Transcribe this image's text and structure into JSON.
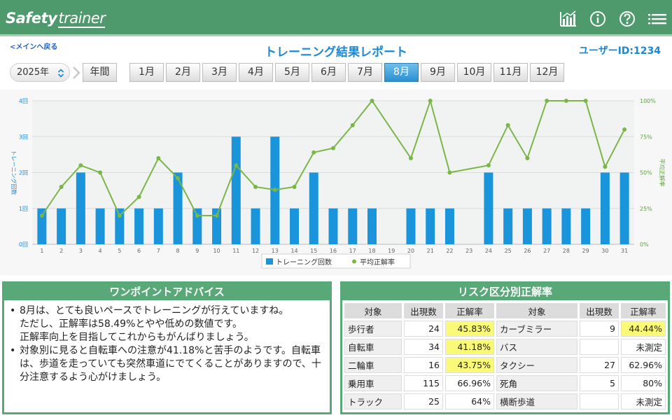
{
  "header": {
    "logo_part1": "Safety",
    "logo_part2": "trainer"
  },
  "nav": {
    "back_label": "<メインへ戻る"
  },
  "page": {
    "title": "トレーニング結果レポート",
    "user_id": "ユーザーID:1234"
  },
  "filters": {
    "year": "2025年",
    "annual_label": "年間",
    "months": [
      "1月",
      "2月",
      "3月",
      "4月",
      "5月",
      "6月",
      "7月",
      "8月",
      "9月",
      "10月",
      "11月",
      "12月"
    ],
    "selected_month": "8月"
  },
  "chart_data": {
    "type": "bar+line",
    "x": [
      1,
      2,
      3,
      4,
      5,
      6,
      7,
      8,
      9,
      10,
      11,
      12,
      13,
      14,
      15,
      16,
      17,
      18,
      19,
      20,
      21,
      22,
      23,
      24,
      25,
      26,
      27,
      28,
      29,
      30,
      31
    ],
    "series": [
      {
        "name": "トレーニング回数",
        "type": "bar",
        "axis": "left",
        "values": [
          1,
          1,
          2,
          1,
          1,
          1,
          1,
          2,
          1,
          1,
          3,
          1,
          3,
          1,
          2,
          1,
          1,
          1,
          0,
          1,
          1,
          1,
          0,
          2,
          1,
          1,
          1,
          1,
          1,
          2,
          2
        ]
      },
      {
        "name": "平均正解率",
        "type": "line",
        "axis": "right",
        "values": [
          20,
          40,
          55,
          50,
          20,
          33,
          60,
          46,
          20,
          20,
          55,
          40,
          38,
          40,
          64,
          67,
          83,
          100,
          null,
          60,
          100,
          50,
          null,
          55,
          83,
          60,
          100,
          100,
          100,
          54,
          80
        ]
      }
    ],
    "ylabel_left": "トレーニング回数",
    "ylabel_right": "平均正解率",
    "ylim_left": [
      0,
      4
    ],
    "ylim_right": [
      0,
      100
    ],
    "yticks_left": [
      "0回",
      "1回",
      "2回",
      "3回",
      "4回"
    ],
    "yticks_right": [
      "0%",
      "25%",
      "50%",
      "75%",
      "100%"
    ],
    "legend_position": "bottom-center",
    "grid": true,
    "colors": {
      "bar": "#1a94da",
      "line": "#7ab648"
    }
  },
  "advice": {
    "title": "ワンポイントアドバイス",
    "items": [
      [
        "8月は、とても良いペースでトレーニングが行えていますね。",
        "ただし、正解率は58.49%とやや低めの数値です。",
        "正解率向上を目指してこれからもがんばりましょう。"
      ],
      [
        "対象別に見ると自転車への注意が41.18%と苦手のようです。自転車は、歩道を走っていても突然車道にでてくることがありますので、十分注意するよう心がけましょう。"
      ]
    ]
  },
  "risk": {
    "title": "リスク区分別正解率",
    "headers": [
      "対象",
      "出現数",
      "正解率",
      "対象",
      "出現数",
      "正解率"
    ],
    "rows": [
      [
        {
          "name": "歩行者",
          "count": "24",
          "rate": "45.83%",
          "hl": true
        },
        {
          "name": "カーブミラー",
          "count": "9",
          "rate": "44.44%",
          "hl": true
        }
      ],
      [
        {
          "name": "自転車",
          "count": "34",
          "rate": "41.18%",
          "hl": true
        },
        {
          "name": "バス",
          "count": "",
          "rate": "未測定",
          "hl": false
        }
      ],
      [
        {
          "name": "二輪車",
          "count": "16",
          "rate": "43.75%",
          "hl": true
        },
        {
          "name": "タクシー",
          "count": "27",
          "rate": "62.96%",
          "hl": false
        }
      ],
      [
        {
          "name": "乗用車",
          "count": "115",
          "rate": "66.96%",
          "hl": false
        },
        {
          "name": "死角",
          "count": "5",
          "rate": "80%",
          "hl": false
        }
      ],
      [
        {
          "name": "トラック",
          "count": "25",
          "rate": "64%",
          "hl": false
        },
        {
          "name": "横断歩道",
          "count": "",
          "rate": "未測定",
          "hl": false
        }
      ]
    ]
  }
}
